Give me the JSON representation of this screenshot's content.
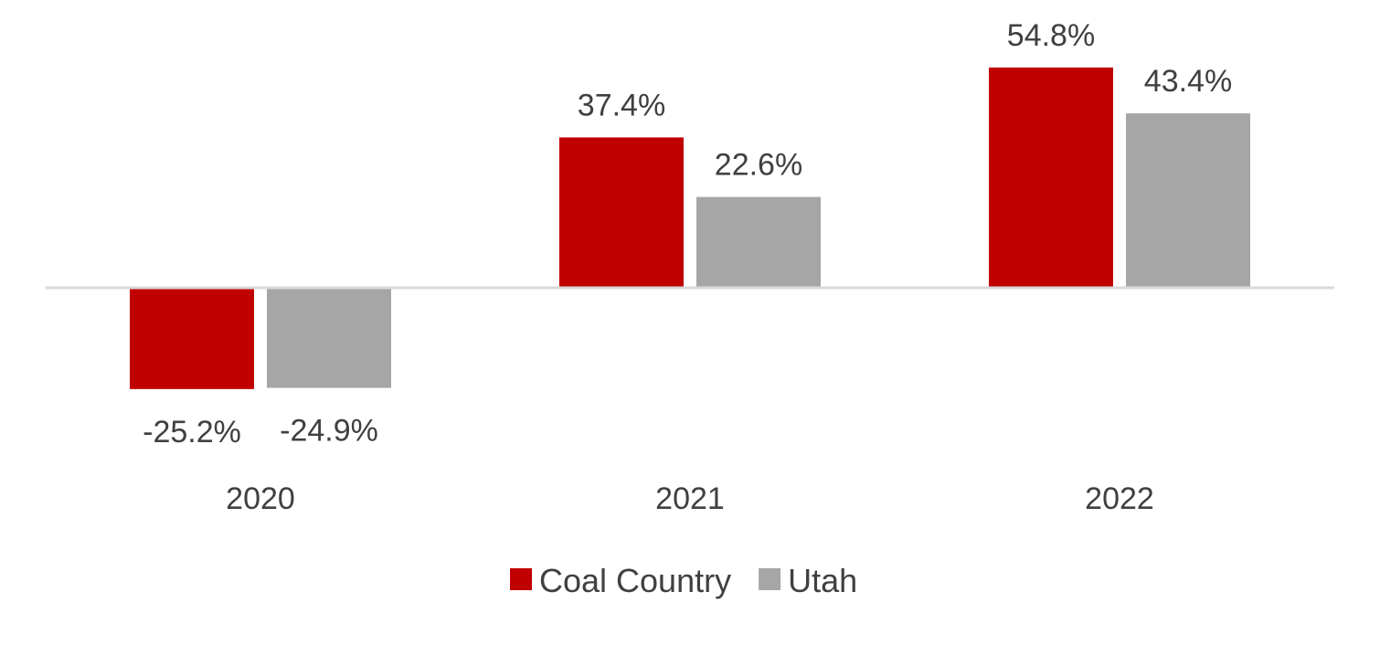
{
  "chart_data": {
    "type": "bar",
    "title": "",
    "xlabel": "",
    "ylabel": "",
    "categories": [
      "2020",
      "2021",
      "2022"
    ],
    "series": [
      {
        "name": "Coal Country",
        "color": "#C00000",
        "values": [
          -25.2,
          37.4,
          54.8
        ],
        "labels": [
          "-25.2%",
          "37.4%",
          "54.8%"
        ]
      },
      {
        "name": "Utah",
        "color": "#A6A6A6",
        "values": [
          -24.9,
          22.6,
          43.4
        ],
        "labels": [
          "-24.9%",
          "22.6%",
          "43.4%"
        ]
      }
    ],
    "ylim": [
      -45,
      65
    ],
    "grid": false,
    "zero_line": true,
    "zero_line_color": "#D9D9D9",
    "legend_position": "bottom",
    "label_color": "#404040"
  }
}
